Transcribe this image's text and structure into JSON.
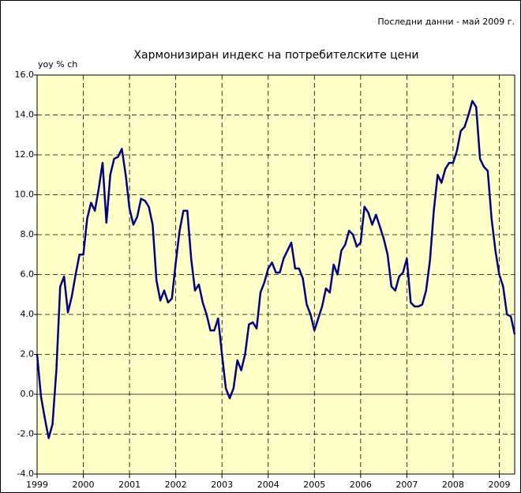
{
  "chart_data": {
    "type": "line",
    "note_top": "Последни данни - май 2009 г.",
    "title": "Хармонизиран индекс на потребителските цени",
    "ylabel": "yoy % ch",
    "color": "#000080",
    "background": "#ffffc8",
    "grid": true,
    "categories": [
      "1999",
      null,
      null,
      null,
      null,
      null,
      null,
      null,
      null,
      null,
      null,
      null,
      "2000",
      null,
      null,
      null,
      null,
      null,
      null,
      null,
      null,
      null,
      null,
      null,
      "2001",
      null,
      null,
      null,
      null,
      null,
      null,
      null,
      null,
      null,
      null,
      null,
      "2002",
      null,
      null,
      null,
      null,
      null,
      null,
      null,
      null,
      null,
      null,
      null,
      "2003",
      null,
      null,
      null,
      null,
      null,
      null,
      null,
      null,
      null,
      null,
      null,
      "2004",
      null,
      null,
      null,
      null,
      null,
      null,
      null,
      null,
      null,
      null,
      null,
      "2005",
      null,
      null,
      null,
      null,
      null,
      null,
      null,
      null,
      null,
      null,
      null,
      "2006",
      null,
      null,
      null,
      null,
      null,
      null,
      null,
      null,
      null,
      null,
      null,
      "2007",
      null,
      null,
      null,
      null,
      null,
      null,
      null,
      null,
      null,
      null,
      null,
      "2008",
      null,
      null,
      null,
      null,
      null,
      null,
      null,
      null,
      null,
      null,
      null,
      "2009",
      null,
      null,
      null,
      null
    ],
    "values": [
      2.0,
      -0.1,
      -1.2,
      -2.2,
      -1.5,
      1.2,
      5.4,
      5.9,
      4.1,
      4.9,
      6.0,
      7.0,
      7.0,
      8.8,
      9.6,
      9.2,
      10.3,
      11.6,
      8.6,
      11.0,
      11.8,
      11.9,
      12.3,
      11.0,
      9.3,
      8.5,
      8.9,
      9.8,
      9.7,
      9.4,
      8.5,
      5.7,
      4.7,
      5.2,
      4.6,
      4.8,
      6.6,
      8.2,
      9.2,
      9.2,
      6.8,
      5.2,
      5.5,
      4.6,
      4.0,
      3.2,
      3.2,
      3.8,
      2.0,
      0.3,
      -0.2,
      0.3,
      1.7,
      1.2,
      2.0,
      3.5,
      3.6,
      3.3,
      5.1,
      5.6,
      6.3,
      6.6,
      6.1,
      6.1,
      6.8,
      7.2,
      7.6,
      6.3,
      6.3,
      5.8,
      4.5,
      4.0,
      3.2,
      3.8,
      4.4,
      5.3,
      5.1,
      6.5,
      6.0,
      7.2,
      7.5,
      8.2,
      8.0,
      7.4,
      7.6,
      9.4,
      9.1,
      8.5,
      9.0,
      8.4,
      7.8,
      7.0,
      5.4,
      5.2,
      5.9,
      6.1,
      6.8,
      4.6,
      4.4,
      4.4,
      4.5,
      5.2,
      6.7,
      9.2,
      11.0,
      10.6,
      11.3,
      11.6,
      11.6,
      12.2,
      13.2,
      13.4,
      14.0,
      14.7,
      14.4,
      11.8,
      11.4,
      11.2,
      8.8,
      7.2,
      6.0,
      5.4,
      4.0,
      3.9,
      3.0
    ],
    "ylim": [
      -4,
      16
    ],
    "yticks": [
      {
        "value": -4,
        "label": "-4.0"
      },
      {
        "value": -2,
        "label": "-2.0"
      },
      {
        "value": 0,
        "label": "0.0"
      },
      {
        "value": 2,
        "label": "2.0"
      },
      {
        "value": 4,
        "label": "4.0"
      },
      {
        "value": 6,
        "label": "6.0"
      },
      {
        "value": 8,
        "label": "8.0"
      },
      {
        "value": 10,
        "label": "10.0"
      },
      {
        "value": 12,
        "label": "12.0"
      },
      {
        "value": 14,
        "label": "14.0"
      },
      {
        "value": 16,
        "label": "16.0"
      }
    ]
  }
}
